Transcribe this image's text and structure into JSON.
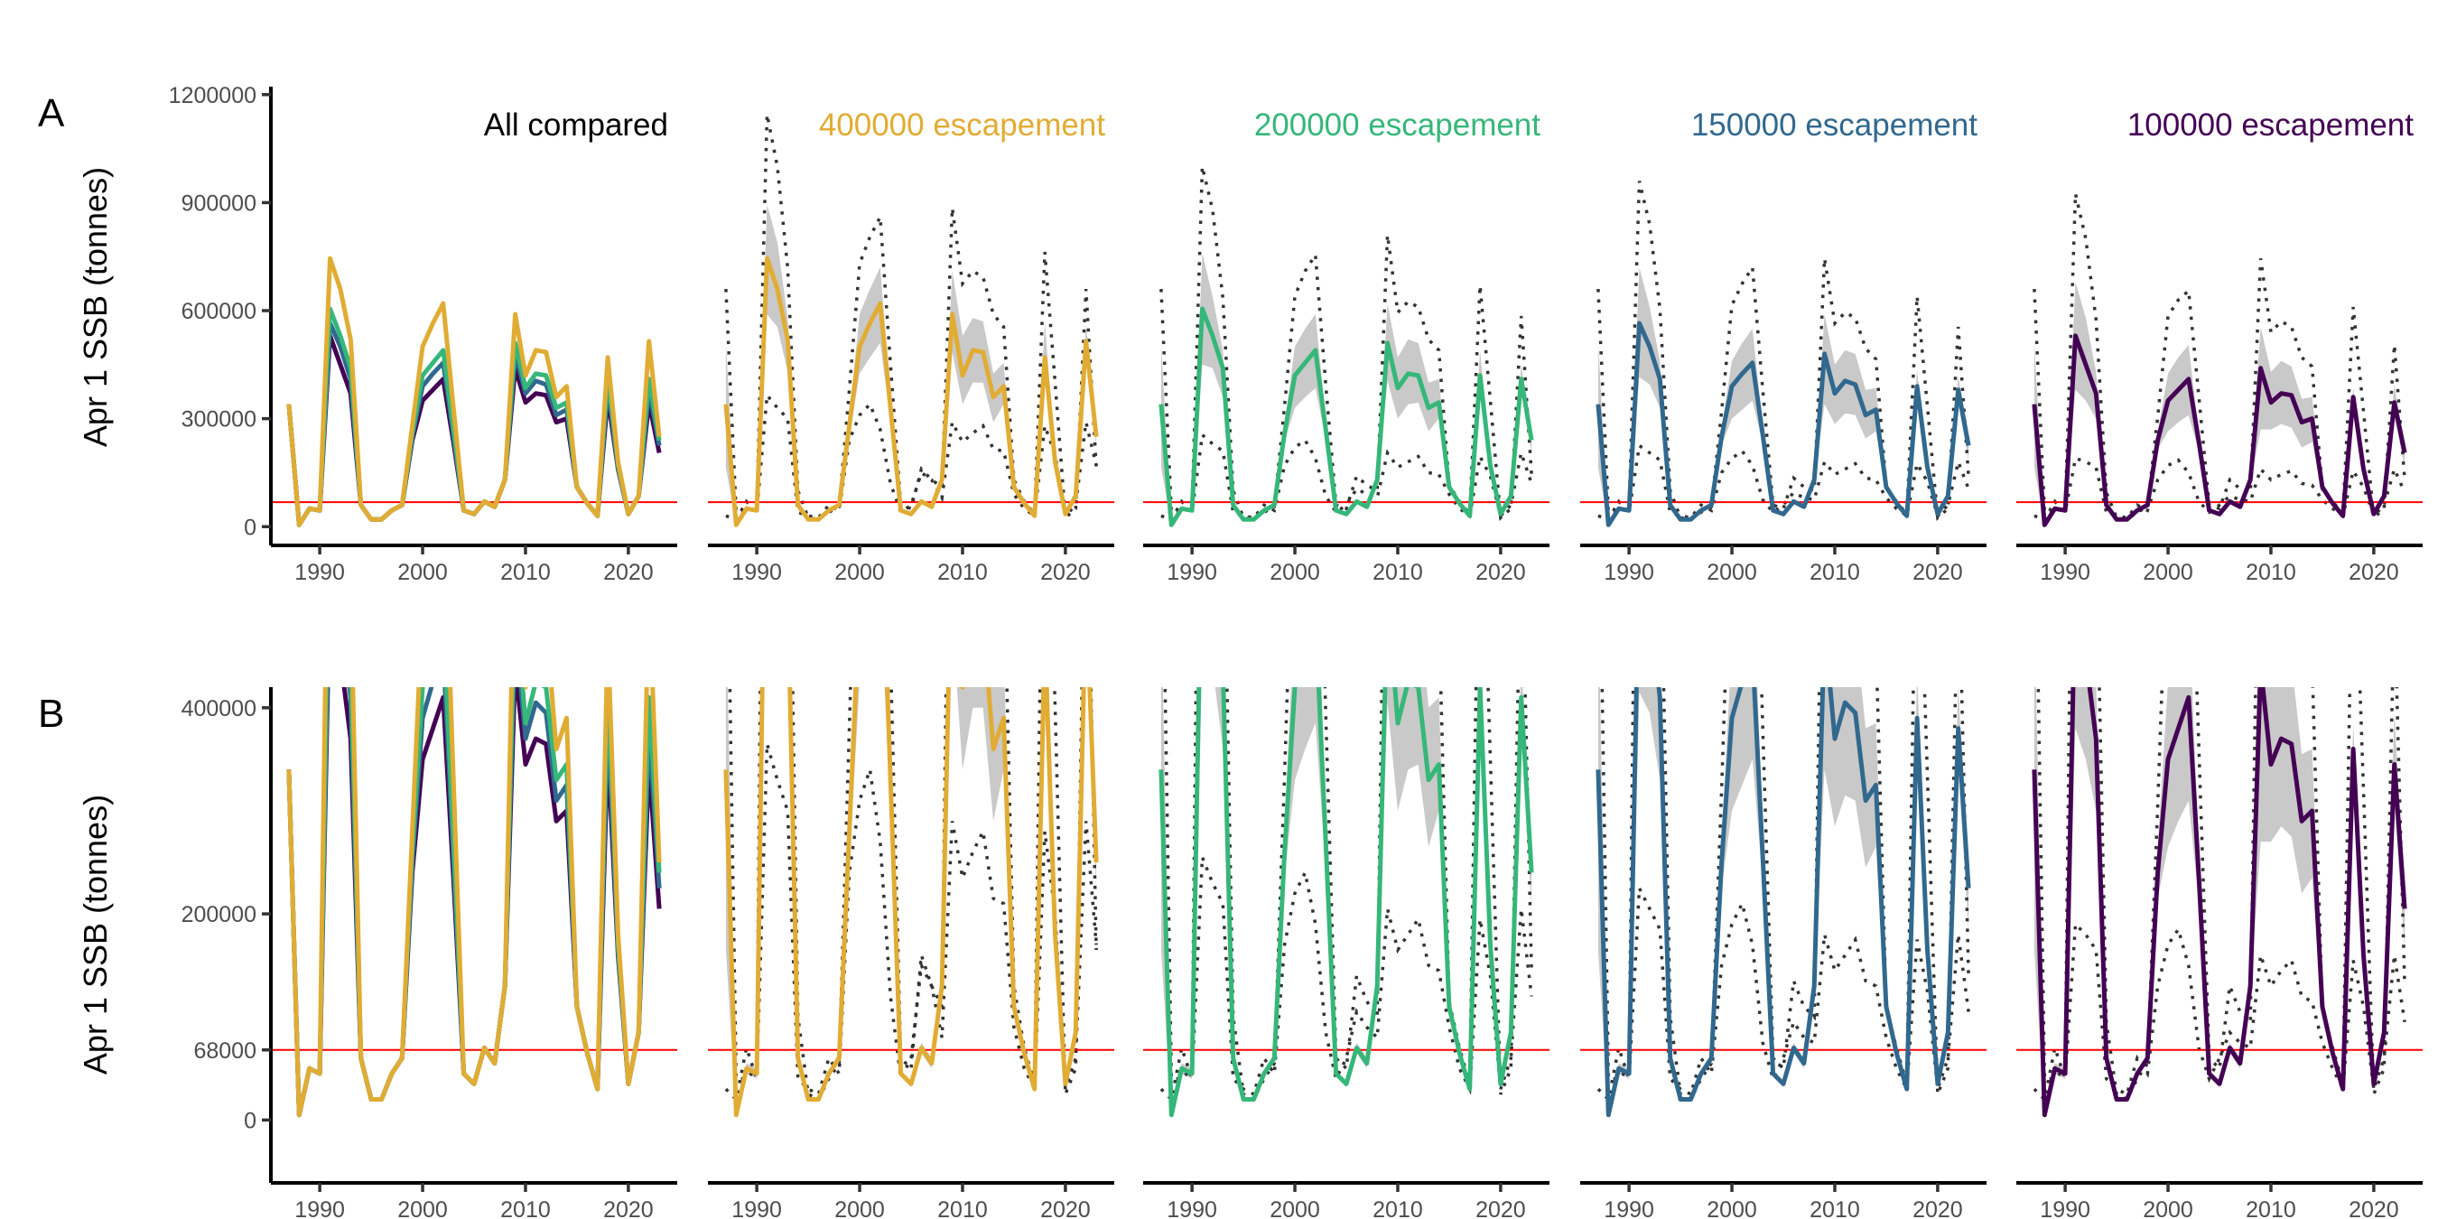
{
  "chart_data": {
    "type": "line",
    "x": [
      1987,
      1988,
      1989,
      1990,
      1991,
      1992,
      1993,
      1994,
      1995,
      1996,
      1997,
      1998,
      1999,
      2000,
      2001,
      2002,
      2003,
      2004,
      2005,
      2006,
      2007,
      2008,
      2009,
      2010,
      2011,
      2012,
      2013,
      2014,
      2015,
      2016,
      2017,
      2018,
      2019,
      2020,
      2021,
      2022,
      2023
    ],
    "xlim": [
      1985.25,
      2024.75
    ],
    "xticks": [
      1990,
      2000,
      2010,
      2020
    ],
    "ylabel": "Apr 1 SSB (tonnes)",
    "threshold": 68000,
    "threshold_color": "#FF0000",
    "ribbon_color": "#C9C9C9",
    "dotted_color": "#333333",
    "grid": false,
    "rows": [
      {
        "label": "A",
        "ylim": [
          -52000,
          1222000
        ],
        "yticks": [
          0,
          300000,
          600000,
          900000,
          1200000
        ]
      },
      {
        "label": "B",
        "ylim": [
          -61000,
          420000
        ],
        "yticks": [
          0,
          68000,
          200000,
          400000
        ]
      }
    ],
    "panels": [
      {
        "title": "All compared",
        "color": "#000000",
        "type": "comparison"
      },
      {
        "title": "400000 escapement",
        "color": "#E1AC33",
        "scenario": 0
      },
      {
        "title": "200000 escapement",
        "color": "#35B779",
        "scenario": 1
      },
      {
        "title": "150000 escapement",
        "color": "#31688E",
        "scenario": 2
      },
      {
        "title": "100000 escapement",
        "color": "#440154",
        "scenario": 3
      }
    ],
    "scenarios": [
      {
        "name": "400000 escapement",
        "color": "#E1AC33",
        "mean": [
          340000,
          5000,
          50000,
          45000,
          745000,
          660000,
          520000,
          60000,
          20000,
          20000,
          45000,
          60000,
          280000,
          500000,
          565000,
          620000,
          330000,
          45000,
          35000,
          70000,
          55000,
          130000,
          590000,
          420000,
          490000,
          485000,
          360000,
          390000,
          110000,
          65000,
          30000,
          470000,
          180000,
          35000,
          85000,
          515000,
          250000
        ],
        "ribbon_low": [
          165000,
          4000,
          45000,
          40000,
          590000,
          555000,
          430000,
          55000,
          18000,
          18000,
          42000,
          55000,
          250000,
          425000,
          470000,
          510000,
          295000,
          42000,
          32000,
          65000,
          50000,
          120000,
          485000,
          340000,
          400000,
          400000,
          290000,
          340000,
          100000,
          60000,
          28000,
          440000,
          165000,
          32000,
          80000,
          470000,
          225000
        ],
        "ribbon_high": [
          510000,
          6000,
          55000,
          50000,
          895000,
          790000,
          580000,
          65000,
          22000,
          22000,
          48000,
          65000,
          310000,
          590000,
          660000,
          720000,
          365000,
          48000,
          38000,
          75000,
          60000,
          140000,
          710000,
          530000,
          580000,
          570000,
          425000,
          455000,
          120000,
          70000,
          32000,
          570000,
          195000,
          38000,
          90000,
          560000,
          255000
        ],
        "dotted_upper": [
          660000,
          40000,
          40000,
          50000,
          1145000,
          1000000,
          720000,
          100000,
          25000,
          20000,
          40000,
          55000,
          380000,
          730000,
          805000,
          860000,
          450000,
          60000,
          50000,
          160000,
          130000,
          110000,
          885000,
          675000,
          710000,
          693000,
          590000,
          555000,
          130000,
          70000,
          35000,
          763000,
          400000,
          25000,
          50000,
          660000,
          165000
        ],
        "dotted_lower": [
          30000,
          20000,
          70000,
          40000,
          365000,
          330000,
          300000,
          40000,
          30000,
          25000,
          60000,
          45000,
          240000,
          310000,
          340000,
          270000,
          120000,
          40000,
          60000,
          150000,
          130000,
          80000,
          290000,
          235000,
          260000,
          280000,
          215000,
          210000,
          90000,
          50000,
          30000,
          280000,
          200000,
          30000,
          60000,
          290000,
          170000
        ]
      },
      {
        "name": "200000 escapement",
        "color": "#35B779",
        "mean": [
          340000,
          5000,
          50000,
          45000,
          605000,
          530000,
          440000,
          60000,
          20000,
          20000,
          45000,
          60000,
          260000,
          420000,
          455000,
          490000,
          270000,
          45000,
          35000,
          70000,
          55000,
          130000,
          510000,
          385000,
          425000,
          420000,
          330000,
          345000,
          110000,
          65000,
          30000,
          420000,
          170000,
          35000,
          85000,
          410000,
          240000
        ],
        "ribbon_low": [
          165000,
          4000,
          45000,
          40000,
          450000,
          440000,
          360000,
          55000,
          18000,
          18000,
          42000,
          55000,
          235000,
          330000,
          360000,
          385000,
          245000,
          42000,
          32000,
          65000,
          50000,
          120000,
          405000,
          300000,
          340000,
          345000,
          265000,
          300000,
          100000,
          60000,
          28000,
          390000,
          155000,
          32000,
          80000,
          380000,
          205000
        ],
        "ribbon_high": [
          510000,
          6000,
          55000,
          50000,
          760000,
          640000,
          490000,
          65000,
          22000,
          22000,
          48000,
          65000,
          285000,
          500000,
          550000,
          590000,
          300000,
          48000,
          38000,
          75000,
          60000,
          140000,
          620000,
          470000,
          520000,
          510000,
          400000,
          410000,
          120000,
          70000,
          32000,
          490000,
          185000,
          38000,
          90000,
          450000,
          245000
        ],
        "dotted_upper": [
          660000,
          40000,
          40000,
          50000,
          1000000,
          880000,
          635000,
          100000,
          25000,
          20000,
          40000,
          55000,
          335000,
          640000,
          710000,
          755000,
          395000,
          60000,
          50000,
          140000,
          115000,
          100000,
          810000,
          595000,
          625000,
          610000,
          520000,
          490000,
          115000,
          70000,
          35000,
          670000,
          350000,
          25000,
          50000,
          585000,
          145000
        ],
        "dotted_lower": [
          30000,
          20000,
          70000,
          40000,
          255000,
          230000,
          210000,
          40000,
          30000,
          25000,
          60000,
          45000,
          170000,
          220000,
          240000,
          190000,
          85000,
          40000,
          60000,
          105000,
          90000,
          80000,
          205000,
          165000,
          180000,
          195000,
          150000,
          145000,
          90000,
          50000,
          30000,
          195000,
          140000,
          30000,
          60000,
          205000,
          120000
        ]
      },
      {
        "name": "150000 escapement",
        "color": "#31688E",
        "mean": [
          340000,
          5000,
          50000,
          45000,
          565000,
          500000,
          410000,
          60000,
          20000,
          20000,
          45000,
          60000,
          250000,
          390000,
          425000,
          455000,
          255000,
          45000,
          35000,
          70000,
          55000,
          130000,
          480000,
          370000,
          405000,
          395000,
          310000,
          325000,
          110000,
          65000,
          30000,
          390000,
          165000,
          35000,
          85000,
          380000,
          225000
        ],
        "ribbon_low": [
          165000,
          4000,
          45000,
          40000,
          415000,
          395000,
          330000,
          55000,
          18000,
          18000,
          42000,
          55000,
          225000,
          300000,
          325000,
          350000,
          230000,
          42000,
          32000,
          65000,
          50000,
          120000,
          340000,
          285000,
          315000,
          310000,
          245000,
          265000,
          100000,
          60000,
          28000,
          360000,
          150000,
          32000,
          80000,
          340000,
          185000
        ],
        "ribbon_high": [
          510000,
          6000,
          55000,
          50000,
          720000,
          610000,
          460000,
          65000,
          22000,
          22000,
          48000,
          65000,
          275000,
          460000,
          510000,
          550000,
          280000,
          48000,
          38000,
          75000,
          60000,
          140000,
          590000,
          450000,
          490000,
          480000,
          380000,
          385000,
          120000,
          70000,
          32000,
          435000,
          180000,
          38000,
          90000,
          420000,
          230000
        ],
        "dotted_upper": [
          660000,
          40000,
          40000,
          50000,
          960000,
          840000,
          605000,
          100000,
          25000,
          20000,
          40000,
          55000,
          320000,
          615000,
          675000,
          720000,
          380000,
          60000,
          50000,
          135000,
          110000,
          100000,
          745000,
          565000,
          595000,
          580000,
          495000,
          465000,
          110000,
          70000,
          35000,
          640000,
          335000,
          25000,
          50000,
          555000,
          140000
        ],
        "dotted_lower": [
          30000,
          20000,
          70000,
          40000,
          225000,
          205000,
          185000,
          40000,
          30000,
          25000,
          60000,
          45000,
          150000,
          190000,
          210000,
          170000,
          75000,
          40000,
          60000,
          95000,
          80000,
          75000,
          180000,
          145000,
          160000,
          175000,
          135000,
          130000,
          80000,
          50000,
          30000,
          175000,
          125000,
          30000,
          60000,
          180000,
          105000
        ]
      },
      {
        "name": "100000 escapement",
        "color": "#440154",
        "mean": [
          340000,
          5000,
          50000,
          45000,
          530000,
          450000,
          370000,
          60000,
          20000,
          20000,
          45000,
          60000,
          240000,
          350000,
          380000,
          410000,
          235000,
          45000,
          35000,
          70000,
          55000,
          130000,
          440000,
          345000,
          370000,
          365000,
          290000,
          300000,
          110000,
          65000,
          30000,
          360000,
          160000,
          35000,
          85000,
          345000,
          205000
        ],
        "ribbon_low": [
          165000,
          4000,
          45000,
          40000,
          380000,
          350000,
          300000,
          55000,
          18000,
          18000,
          42000,
          55000,
          215000,
          265000,
          290000,
          310000,
          210000,
          42000,
          32000,
          65000,
          50000,
          120000,
          270000,
          270000,
          285000,
          275000,
          220000,
          235000,
          100000,
          60000,
          28000,
          330000,
          150000,
          32000,
          80000,
          305000,
          165000
        ],
        "ribbon_high": [
          510000,
          6000,
          55000,
          50000,
          680000,
          580000,
          430000,
          65000,
          22000,
          22000,
          48000,
          65000,
          265000,
          425000,
          470000,
          505000,
          260000,
          48000,
          38000,
          75000,
          60000,
          140000,
          555000,
          430000,
          460000,
          445000,
          355000,
          360000,
          120000,
          70000,
          32000,
          385000,
          175000,
          38000,
          90000,
          395000,
          210000
        ],
        "dotted_upper": [
          660000,
          40000,
          40000,
          50000,
          925000,
          800000,
          575000,
          95000,
          25000,
          20000,
          40000,
          55000,
          305000,
          585000,
          630000,
          655000,
          360000,
          60000,
          50000,
          130000,
          105000,
          95000,
          745000,
          540000,
          570000,
          555000,
          470000,
          445000,
          105000,
          70000,
          35000,
          610000,
          320000,
          25000,
          50000,
          505000,
          130000
        ],
        "dotted_lower": [
          30000,
          20000,
          70000,
          40000,
          190000,
          180000,
          165000,
          40000,
          30000,
          25000,
          60000,
          45000,
          130000,
          170000,
          185000,
          150000,
          70000,
          40000,
          60000,
          85000,
          75000,
          70000,
          160000,
          130000,
          145000,
          155000,
          120000,
          115000,
          75000,
          50000,
          30000,
          155000,
          110000,
          30000,
          60000,
          160000,
          95000
        ]
      }
    ]
  }
}
